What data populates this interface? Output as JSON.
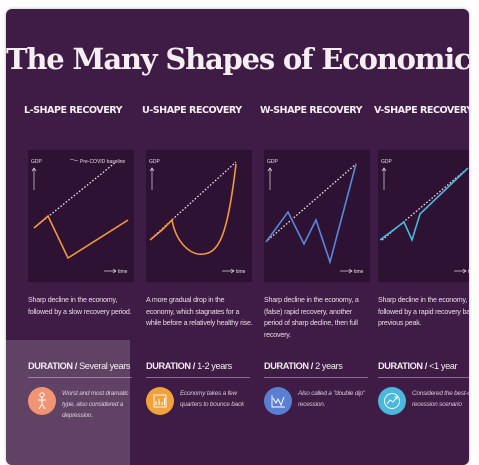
{
  "title": "The Many Shapes of Economic Recovery",
  "colors": {
    "background": "#3f1c45",
    "chart_bg": "#2d1233",
    "orange": "#f0983a",
    "blue": "#5a88d8",
    "cyan": "#4ab8d8",
    "baseline": "#e8dde6"
  },
  "chart_labels": {
    "y_axis": "GDP",
    "x_axis": "time",
    "baseline": "Pre-COVID baseline"
  },
  "shapes": [
    {
      "heading": "L-SHAPE RECOVERY",
      "description": "Sharp decline in the economy, followed by a slow recovery period.",
      "duration_label": "DURATION /",
      "duration_value": " Several years",
      "note": "Worst and most dramatic type, also considered a depression.",
      "icon": "person-falling-icon",
      "icon_color": "#ee7f57",
      "line_color": "#f0983a"
    },
    {
      "heading": "U-SHAPE RECOVERY",
      "description": "A more gradual drop in the economy, which stagnates for a while before a relatively healthy rise.",
      "duration_label": "DURATION /",
      "duration_value": " 1-2 years",
      "note": "Economy takes a few quarters to bounce back",
      "icon": "bar-chart-icon",
      "icon_color": "#f2a23a",
      "line_color": "#f0983a"
    },
    {
      "heading": "W-SHAPE RECOVERY",
      "description": "Sharp decline in the economy, a (false) rapid recovery, another period of sharp decline, then full recovery.",
      "duration_label": "DURATION /",
      "duration_value": " 2 years",
      "note": "Also called a \"double dip\" recession.",
      "icon": "double-dip-chart-icon",
      "icon_color": "#5a7fd2",
      "line_color": "#5a88d8"
    },
    {
      "heading": "V-SHAPE RECOVERY",
      "description": "Sharp decline in the economy, followed by a rapid recovery back to previous peak.",
      "duration_label": "DURATION /",
      "duration_value": " <1 year",
      "note": "Considered the best-case recession scenario",
      "icon": "rising-chart-icon",
      "icon_color": "#49b8dc",
      "line_color": "#4ab8d8"
    }
  ]
}
